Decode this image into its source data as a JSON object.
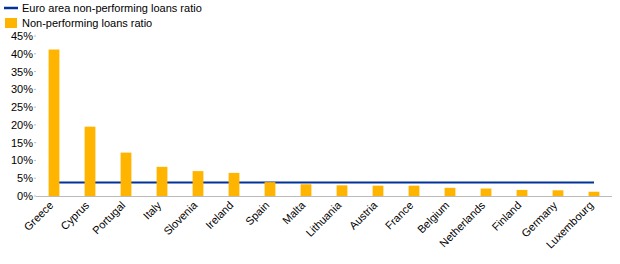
{
  "chart_data": {
    "type": "bar",
    "categories": [
      "Greece",
      "Cyprus",
      "Portugal",
      "Italy",
      "Slovenia",
      "Ireland",
      "Spain",
      "Malta",
      "Lithuania",
      "Austria",
      "France",
      "Belgium",
      "Netherlands",
      "Finland",
      "Germany",
      "Luxembourg"
    ],
    "series": [
      {
        "name": "Euro area non-performing loans ratio",
        "type": "line",
        "color": "#003299",
        "values": [
          3.8,
          3.8,
          3.8,
          3.8,
          3.8,
          3.8,
          3.8,
          3.8,
          3.8,
          3.8,
          3.8,
          3.8,
          3.8,
          3.8,
          3.8,
          3.8
        ]
      },
      {
        "name": "Non-performing loans ratio",
        "type": "bar",
        "color": "#ffb400",
        "values": [
          41.2,
          19.5,
          12.2,
          8.2,
          7.0,
          6.5,
          3.9,
          3.3,
          3.0,
          2.9,
          2.9,
          2.3,
          2.1,
          1.7,
          1.6,
          1.2
        ]
      }
    ],
    "ylim": [
      0,
      45
    ],
    "yticks": [
      {
        "value": 0,
        "label": "0%"
      },
      {
        "value": 5,
        "label": "5%"
      },
      {
        "value": 10,
        "label": "10%"
      },
      {
        "value": 15,
        "label": "15%"
      },
      {
        "value": 20,
        "label": "20%"
      },
      {
        "value": 25,
        "label": "25%"
      },
      {
        "value": 30,
        "label": "30%"
      },
      {
        "value": 35,
        "label": "35%"
      },
      {
        "value": 40,
        "label": "40%"
      },
      {
        "value": 45,
        "label": "45%"
      }
    ],
    "grid": false,
    "legend": "top-left"
  }
}
